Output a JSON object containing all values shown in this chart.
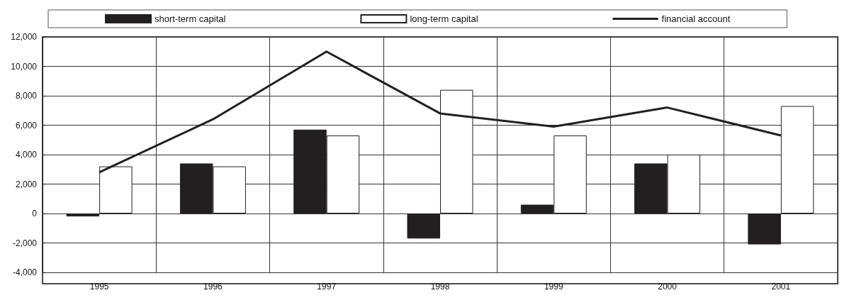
{
  "chart_data": {
    "type": "bar",
    "categories": [
      "1995",
      "1996",
      "1997",
      "1998",
      "1999",
      "2000",
      "2001"
    ],
    "series": [
      {
        "name": "short-term capital",
        "color": "#231f20",
        "values": [
          -200,
          3400,
          5700,
          -1700,
          600,
          3400,
          -2100
        ]
      },
      {
        "name": "long-term capital",
        "color": "#ffffff",
        "values": [
          3200,
          3200,
          5300,
          8400,
          5300,
          4000,
          7300
        ]
      },
      {
        "name": "financial account",
        "type": "line",
        "color": "#231f20",
        "values": [
          2800,
          6400,
          11000,
          6800,
          5900,
          7200,
          5300
        ]
      }
    ],
    "ylim": [
      -4000,
      12000
    ],
    "yticks": [
      {
        "value": -4000,
        "label": "-4,000"
      },
      {
        "value": -2000,
        "label": "-2,000"
      },
      0,
      {
        "value": 2000,
        "label": "2,000"
      },
      {
        "value": 4000,
        "label": "4,000"
      },
      {
        "value": 6000,
        "label": "6,000"
      },
      {
        "value": 8000,
        "label": "8,000"
      },
      {
        "value": 10000,
        "label": "10,000"
      },
      {
        "value": 12000,
        "label": "12,000"
      }
    ],
    "grid": true,
    "legend": "top",
    "marker": "none",
    "line_style": "solid"
  }
}
